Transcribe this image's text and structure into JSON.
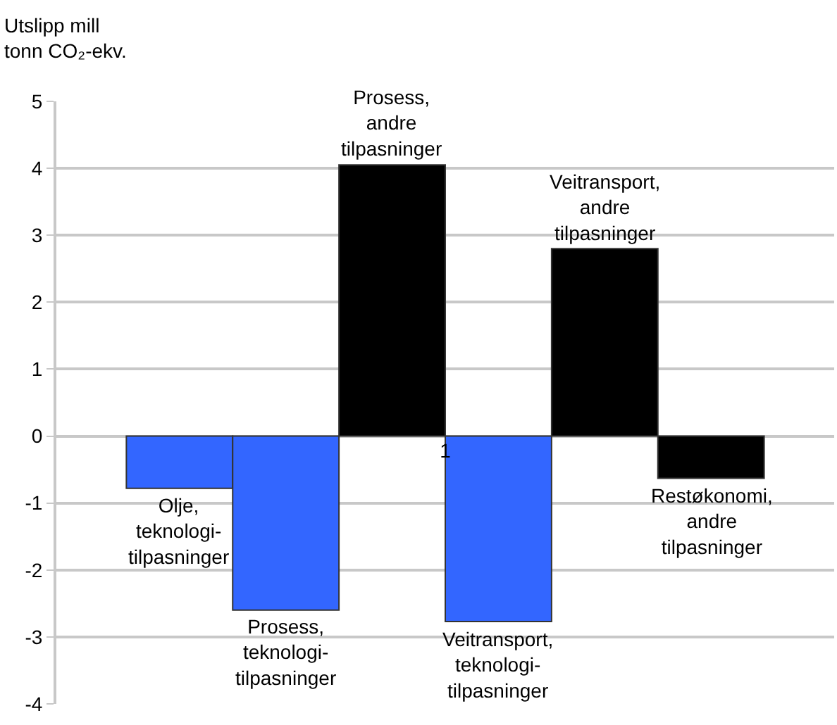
{
  "chart_data": {
    "type": "bar",
    "ylabel": "Utslipp mill tonn CO₂-ekv.",
    "categories": [
      "1"
    ],
    "series": [
      {
        "name": "Olje, teknologi-tilpasninger",
        "color": "#3366ff",
        "values": [
          -0.78
        ]
      },
      {
        "name": "Prosess, teknologi-tilpasninger",
        "color": "#3366ff",
        "values": [
          -2.6
        ]
      },
      {
        "name": "Prosess, andre tilpasninger",
        "color": "#000000",
        "values": [
          4.05
        ]
      },
      {
        "name": "Veitransport, teknologi-tilpasninger",
        "color": "#3366ff",
        "values": [
          -2.77
        ]
      },
      {
        "name": "Veitransport, andre tilpasninger",
        "color": "#000000",
        "values": [
          2.8
        ]
      },
      {
        "name": "Restøkonomi, andre tilpasninger",
        "color": "#000000",
        "values": [
          -0.63
        ]
      }
    ],
    "ylim": [
      -4,
      5
    ],
    "yticks": [
      -4,
      -3,
      -2,
      -1,
      0,
      1,
      2,
      3,
      4,
      5
    ],
    "grid": "y",
    "legend": false
  }
}
